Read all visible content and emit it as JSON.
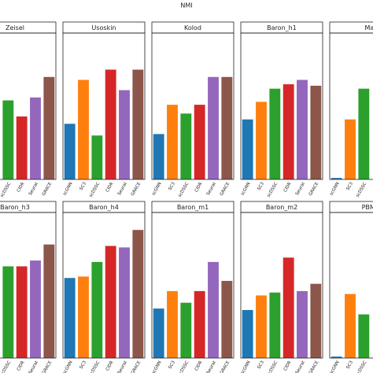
{
  "title": "NMI",
  "chart_data": [
    {
      "type": "bar",
      "title": "Zeisel",
      "categories": [
        "scDSSC",
        "CIDR",
        "Seurat",
        "GRACE"
      ],
      "values": [
        0.54,
        0.43,
        0.56,
        0.7
      ],
      "colors": [
        "#2ca02c",
        "#d62728",
        "#9467bd",
        "#8c564b"
      ],
      "ylim": [
        0,
        1
      ]
    },
    {
      "type": "bar",
      "title": "Usoskin",
      "categories": [
        "scGNN",
        "SC3",
        "scDSSC",
        "CIDR",
        "Seurat",
        "GRACE"
      ],
      "values": [
        0.38,
        0.68,
        0.3,
        0.75,
        0.61,
        0.75
      ],
      "colors": [
        "#1f77b4",
        "#ff7f0e",
        "#2ca02c",
        "#d62728",
        "#9467bd",
        "#8c564b"
      ],
      "ylim": [
        0,
        1
      ]
    },
    {
      "type": "bar",
      "title": "Kolod",
      "categories": [
        "scGNN",
        "SC3",
        "scDSSC",
        "CIDR",
        "Seurat",
        "GRACE"
      ],
      "values": [
        0.31,
        0.51,
        0.45,
        0.51,
        0.7,
        0.7
      ],
      "colors": [
        "#1f77b4",
        "#ff7f0e",
        "#2ca02c",
        "#d62728",
        "#9467bd",
        "#8c564b"
      ],
      "ylim": [
        0,
        1
      ]
    },
    {
      "type": "bar",
      "title": "Baron_h1",
      "categories": [
        "scGNN",
        "SC3",
        "scDSSC",
        "CIDR",
        "Seurat",
        "GRACE"
      ],
      "values": [
        0.41,
        0.53,
        0.62,
        0.65,
        0.68,
        0.64
      ],
      "colors": [
        "#1f77b4",
        "#ff7f0e",
        "#2ca02c",
        "#d62728",
        "#9467bd",
        "#8c564b"
      ],
      "ylim": [
        0,
        1
      ]
    },
    {
      "type": "bar",
      "title": "Mar",
      "categories": [
        "scGNN",
        "SC3",
        "scDSSC"
      ],
      "values": [
        0.01,
        0.41,
        0.62
      ],
      "colors": [
        "#1f77b4",
        "#ff7f0e",
        "#2ca02c"
      ],
      "ylim": [
        0,
        1
      ]
    },
    {
      "type": "bar",
      "title": "Baron_h3",
      "categories": [
        "scDSSC",
        "CIDR",
        "Seurat",
        "GRACE"
      ],
      "values": [
        0.63,
        0.63,
        0.67,
        0.78
      ],
      "colors": [
        "#2ca02c",
        "#d62728",
        "#9467bd",
        "#8c564b"
      ],
      "ylim": [
        0,
        1
      ]
    },
    {
      "type": "bar",
      "title": "Baron_h4",
      "categories": [
        "scGNN",
        "SC3",
        "scDSSC",
        "CIDR",
        "Seurat",
        "GRACE"
      ],
      "values": [
        0.55,
        0.56,
        0.66,
        0.77,
        0.76,
        0.88
      ],
      "colors": [
        "#1f77b4",
        "#ff7f0e",
        "#2ca02c",
        "#d62728",
        "#9467bd",
        "#8c564b"
      ],
      "ylim": [
        0,
        1
      ]
    },
    {
      "type": "bar",
      "title": "Baron_m1",
      "categories": [
        "scGNN",
        "SC3",
        "scDSSC",
        "CIDR",
        "Seurat",
        "GRACE"
      ],
      "values": [
        0.34,
        0.46,
        0.38,
        0.46,
        0.66,
        0.53
      ],
      "colors": [
        "#1f77b4",
        "#ff7f0e",
        "#2ca02c",
        "#d62728",
        "#9467bd",
        "#8c564b"
      ],
      "ylim": [
        0,
        1
      ]
    },
    {
      "type": "bar",
      "title": "Baron_m2",
      "categories": [
        "scGNN",
        "SC3",
        "scDSSC",
        "CIDR",
        "Seurat",
        "GRACE"
      ],
      "values": [
        0.33,
        0.43,
        0.45,
        0.69,
        0.46,
        0.51
      ],
      "colors": [
        "#1f77b4",
        "#ff7f0e",
        "#2ca02c",
        "#d62728",
        "#9467bd",
        "#8c564b"
      ],
      "ylim": [
        0,
        1
      ]
    },
    {
      "type": "bar",
      "title": "PBMC",
      "categories": [
        "scGNN",
        "SC3",
        "scDSSC"
      ],
      "values": [
        0.01,
        0.44,
        0.3
      ],
      "colors": [
        "#1f77b4",
        "#ff7f0e",
        "#2ca02c"
      ],
      "ylim": [
        0,
        1
      ]
    }
  ]
}
